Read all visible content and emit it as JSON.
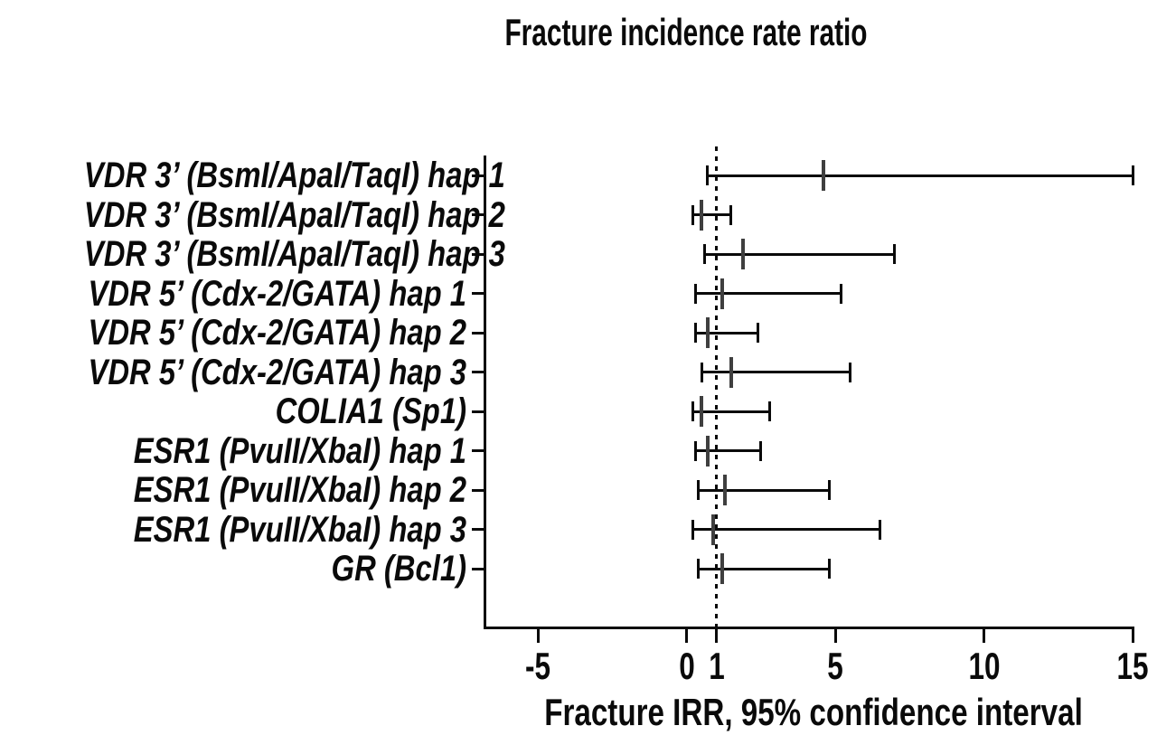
{
  "figure": {
    "title": "Fracture incidence rate ratio",
    "x_axis_label": "Fracture IRR, 95% confidence interval"
  },
  "chart_data": {
    "type": "forest",
    "title": "Fracture incidence rate ratio",
    "xlabel": "Fracture IRR, 95% confidence interval",
    "ylabel": "",
    "xlim": [
      -6.8,
      15
    ],
    "x_ticks": [
      -5,
      0,
      1,
      5,
      10,
      15
    ],
    "reference_line": {
      "x": 1,
      "style": "dotted"
    },
    "grid": false,
    "legend": false,
    "rows": [
      {
        "label": "VDR 3’ (BsmI/ApaI/TaqI) hap 1",
        "irr": 4.6,
        "ci_low": 0.7,
        "ci_high": 15.0
      },
      {
        "label": "VDR 3’ (BsmI/ApaI/TaqI) hap 2",
        "irr": 0.5,
        "ci_low": 0.2,
        "ci_high": 1.5
      },
      {
        "label": "VDR 3’ (BsmI/ApaI/TaqI) hap 3",
        "irr": 1.9,
        "ci_low": 0.6,
        "ci_high": 7.0
      },
      {
        "label": "VDR 5’ (Cdx-2/GATA) hap 1",
        "irr": 1.2,
        "ci_low": 0.3,
        "ci_high": 5.2
      },
      {
        "label": "VDR 5’ (Cdx-2/GATA) hap 2",
        "irr": 0.7,
        "ci_low": 0.3,
        "ci_high": 2.4
      },
      {
        "label": "VDR 5’ (Cdx-2/GATA) hap 3",
        "irr": 1.5,
        "ci_low": 0.5,
        "ci_high": 5.5
      },
      {
        "label": "COLIA1 (Sp1)",
        "irr": 0.5,
        "ci_low": 0.2,
        "ci_high": 2.8
      },
      {
        "label": "ESR1 (PvuII/XbaI) hap 1",
        "irr": 0.7,
        "ci_low": 0.3,
        "ci_high": 2.5
      },
      {
        "label": "ESR1 (PvuII/XbaI) hap 2",
        "irr": 1.3,
        "ci_low": 0.4,
        "ci_high": 4.8
      },
      {
        "label": "ESR1 (PvuII/XbaI) hap 3",
        "irr": 0.9,
        "ci_low": 0.2,
        "ci_high": 6.5
      },
      {
        "label": "GR (Bcl1)",
        "irr": 1.2,
        "ci_low": 0.4,
        "ci_high": 4.8
      }
    ],
    "colors": {
      "axis": "#0a0a0a",
      "ci": "#0a0a0a",
      "estimate": "#3f3f3f",
      "background": "#ffffff"
    }
  }
}
